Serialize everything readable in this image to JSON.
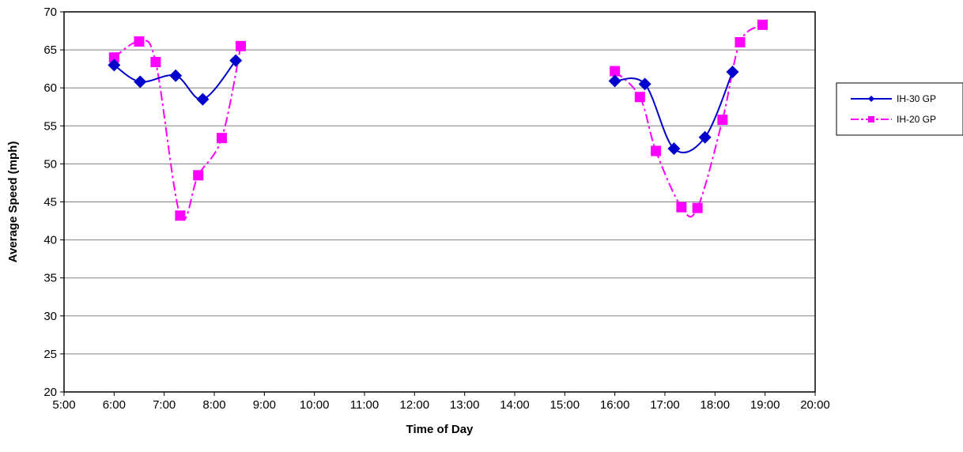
{
  "chart_data": {
    "type": "line",
    "title": "",
    "xlabel": "Time of Day",
    "ylabel": "Average Speed (mph)",
    "xlim": [
      5,
      20
    ],
    "ylim": [
      20,
      70
    ],
    "x_ticks": [
      5,
      6,
      7,
      8,
      9,
      10,
      11,
      12,
      13,
      14,
      15,
      16,
      17,
      18,
      19,
      20
    ],
    "x_tick_labels": [
      "5:00",
      "6:00",
      "7:00",
      "8:00",
      "9:00",
      "10:00",
      "11:00",
      "12:00",
      "13:00",
      "14:00",
      "15:00",
      "16:00",
      "17:00",
      "18:00",
      "19:00",
      "20:00"
    ],
    "y_ticks": [
      20,
      25,
      30,
      35,
      40,
      45,
      50,
      55,
      60,
      65,
      70
    ],
    "y_tick_labels": [
      "20",
      "25",
      "30",
      "35",
      "40",
      "45",
      "50",
      "55",
      "60",
      "65",
      "70"
    ],
    "grid": true,
    "legend_position": "right",
    "series": [
      {
        "name": "IH-30 GP",
        "color": "#0000CC",
        "line_style": "solid",
        "marker": "diamond",
        "segments": [
          [
            [
              6.0,
              63.0
            ],
            [
              6.52,
              60.8
            ],
            [
              7.23,
              61.6
            ],
            [
              7.77,
              58.5
            ],
            [
              8.43,
              63.6
            ]
          ],
          [
            [
              16.0,
              60.9
            ],
            [
              16.6,
              60.5
            ],
            [
              17.18,
              52.0
            ],
            [
              17.8,
              53.5
            ],
            [
              18.35,
              62.1
            ]
          ]
        ]
      },
      {
        "name": "IH-20 GP",
        "color": "#FF00FF",
        "line_style": "dash-dot",
        "marker": "square",
        "segments": [
          [
            [
              6.0,
              64.0
            ],
            [
              6.5,
              66.1
            ],
            [
              6.83,
              63.4
            ],
            [
              7.32,
              43.2
            ],
            [
              7.68,
              48.5
            ],
            [
              8.15,
              53.4
            ],
            [
              8.53,
              65.5
            ]
          ],
          [
            [
              16.0,
              62.2
            ],
            [
              16.5,
              58.8
            ],
            [
              16.82,
              51.7
            ],
            [
              17.33,
              44.3
            ],
            [
              17.65,
              44.2
            ],
            [
              18.15,
              55.8
            ],
            [
              18.5,
              66.0
            ],
            [
              18.95,
              68.3
            ]
          ]
        ]
      }
    ]
  }
}
